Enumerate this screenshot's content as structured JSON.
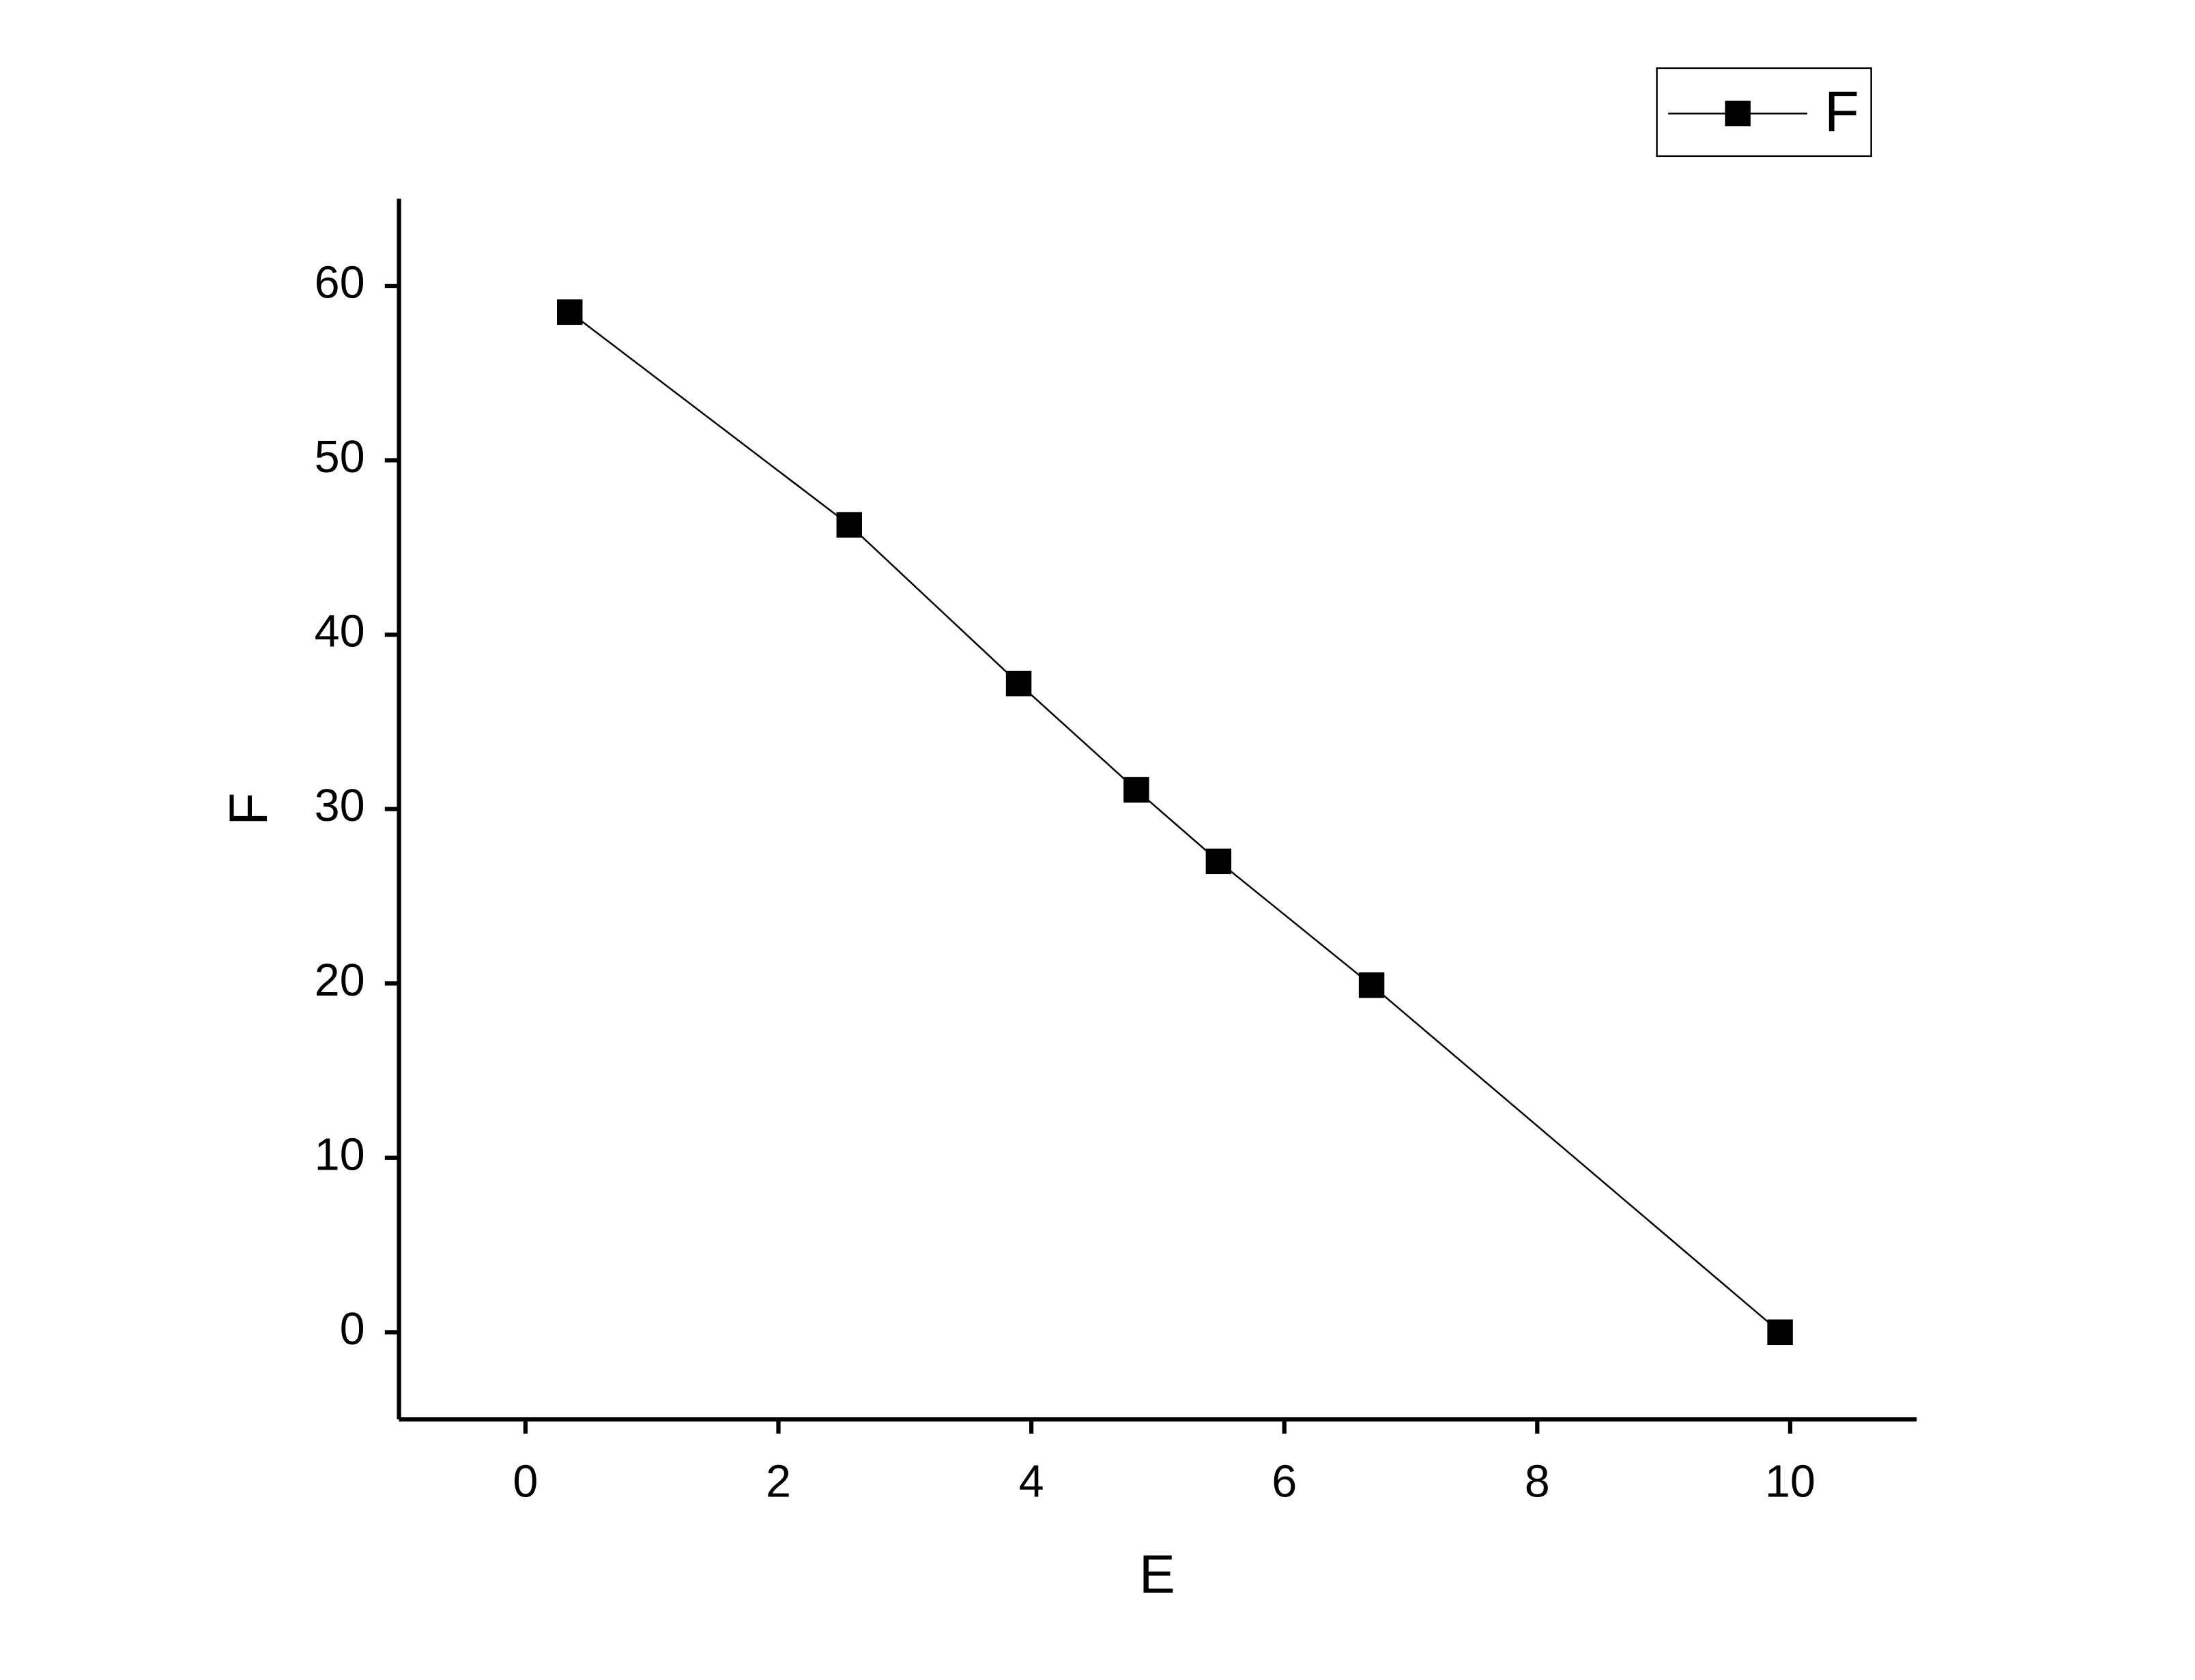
{
  "chart_data": {
    "type": "line",
    "x_label": "E",
    "y_label": "F",
    "x": [
      0.35,
      2.56,
      3.9,
      4.83,
      5.48,
      6.69,
      9.92
    ],
    "series": [
      {
        "name": "F",
        "color": "#000000",
        "values": [
          58.5,
          46.3,
          37.2,
          31.1,
          27.0,
          19.9,
          0
        ]
      }
    ],
    "xlim": [
      -1,
      11
    ],
    "xticks": [
      0,
      2,
      4,
      6,
      8,
      10
    ],
    "ylim": [
      -5,
      65
    ],
    "yticks": [
      0,
      10,
      20,
      30,
      40,
      50,
      60
    ],
    "grid": false,
    "legend": "top-right",
    "marker": "square"
  }
}
